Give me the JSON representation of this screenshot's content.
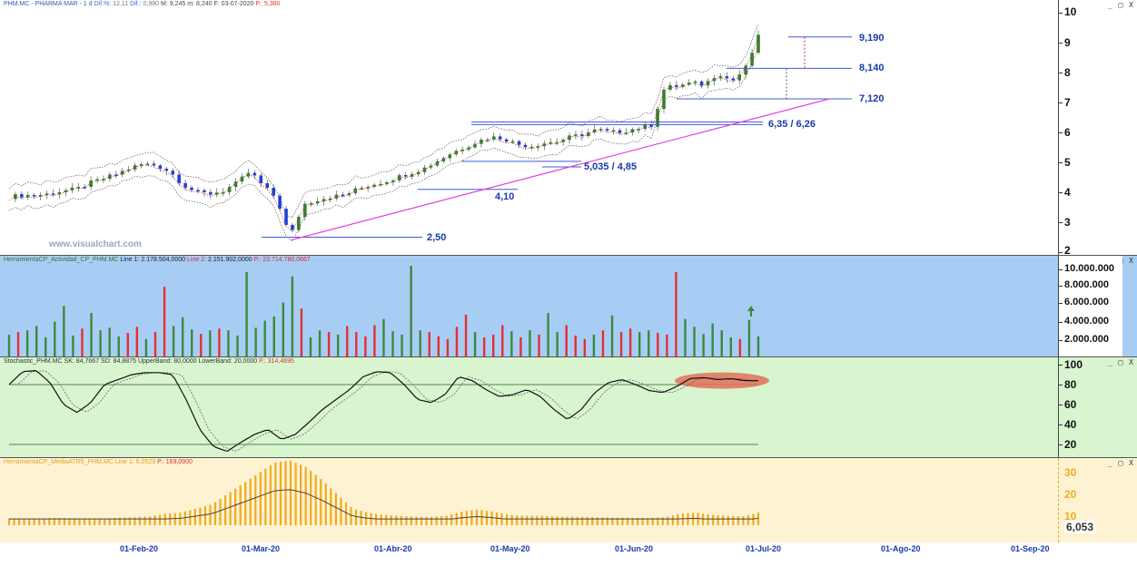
{
  "price_panel": {
    "header": {
      "symbol": "PHM.MC - PHARMA MAR - 1 d",
      "dif_pct_label": "Dif.%:",
      "dif_pct": "12,11",
      "dif_label": "Dif.:",
      "dif": "0,980",
      "max_label": "M:",
      "max": "9,245",
      "min_label": "m:",
      "min": "8,240",
      "date_label": "F:",
      "date": "03-07-2020",
      "price_label": "P.:",
      "price": "5,380"
    },
    "watermark": "www.visualchart.com",
    "levels": [
      "9,190",
      "8,140",
      "7,120",
      "6,35 / 6,26",
      "5,035 / 4,85",
      "4,10",
      "2,50"
    ],
    "y_ticks": [
      "10",
      "9",
      "8",
      "7",
      "6",
      "5",
      "4",
      "3",
      "2"
    ],
    "colors": {
      "bull": "#3b7d2e",
      "bear": "#1f3fd6",
      "trend": "#e23ce0",
      "level": "#3f5bd8",
      "bands": "#555555",
      "sma": "#d03030"
    }
  },
  "volume_panel": {
    "header": "HerramientaCP_Actividad_CP_PHM.MC",
    "line1_label": "Line 1:",
    "line1": "2.178.504,0000",
    "line2_label": "Line 2:",
    "line2": "2.151.902,0000",
    "p_label": "P.:",
    "p": "23.714.780,0667",
    "y_ticks": [
      "10.000.000",
      "8.000.000",
      "6.000.000",
      "4.000.000",
      "2.000.000"
    ],
    "colors": {
      "background": "#a8cdf5",
      "up": "#3b8a3b",
      "down": "#e33030"
    }
  },
  "stochastic_panel": {
    "header": "Stochastic_PHM.MC",
    "sk_label": "SK:",
    "sk": "84,7667",
    "sd_label": "SD:",
    "sd": "84,8875",
    "upper_label": "UpperBand:",
    "upper": "80,0000",
    "lower_label": "LowerBand:",
    "lower": "20,0000",
    "p_label": "P.:",
    "p": "314,4695",
    "y_ticks": [
      "100",
      "80",
      "60",
      "40",
      "20"
    ],
    "colors": {
      "background": "#d9f5d0",
      "highlight": "#e2705a"
    }
  },
  "atr_panel": {
    "header": "HerramientaCP_MediaATR5_PHM.MC",
    "line1_label": "Line 1:",
    "line1": "6,0529",
    "p_label": "P.:",
    "p": "169,0900",
    "y_ticks": [
      "30",
      "20",
      "10"
    ],
    "last_value": "6,053",
    "colors": {
      "background": "#fdf3d2",
      "bars": "#f2aa22"
    }
  },
  "window_buttons": "_ □ X",
  "x_axis": [
    "01-Feb-20",
    "01-Mar-20",
    "01-Abr-20",
    "01-May-20",
    "01-Jun-20",
    "01-Jul-20",
    "01-Ago-20",
    "01-Sep-20"
  ],
  "chart_data": {
    "type": "candlestick",
    "symbol": "PHM.MC",
    "price_range": [
      2,
      10
    ],
    "price_close_path": [
      3.85,
      3.9,
      3.9,
      3.95,
      4.05,
      4.1,
      4.3,
      4.45,
      4.6,
      4.8,
      4.95,
      4.9,
      4.7,
      4.25,
      4.0,
      3.95,
      4.05,
      4.3,
      4.7,
      4.2,
      3.8,
      2.5,
      3.6,
      3.75,
      3.85,
      3.9,
      4.1,
      4.25,
      4.35,
      4.5,
      4.65,
      4.8,
      5.05,
      5.3,
      5.5,
      5.7,
      5.85,
      5.8,
      5.6,
      5.55,
      5.65,
      5.7,
      5.85,
      5.95,
      6.1,
      6.0,
      6.05,
      6.15,
      6.25,
      7.5,
      7.55,
      7.65,
      7.6,
      8.0,
      7.7,
      8.1,
      9.19
    ],
    "levels": [
      9.19,
      8.14,
      7.12,
      6.35,
      6.26,
      5.035,
      4.85,
      4.1,
      2.5
    ],
    "volume_millions_path": [
      2.5,
      2.8,
      3.0,
      3.5,
      2.2,
      4.0,
      5.8,
      2.4,
      3.2,
      5.0,
      3.0,
      3.3,
      2.3,
      2.7,
      3.4,
      2.0,
      2.8,
      8.0,
      3.5,
      4.5,
      3.1,
      2.6,
      3.0,
      3.2,
      3.0,
      2.4,
      9.7,
      3.3,
      4.1,
      4.6,
      6.2,
      9.2,
      5.5,
      2.2,
      3.0,
      2.8,
      2.5,
      3.5,
      2.8,
      2.3,
      3.6,
      4.3,
      2.9,
      2.5,
      10.4,
      3.0,
      2.8,
      2.3,
      2.0,
      3.4,
      4.8,
      2.8,
      2.2,
      2.5,
      3.6,
      2.9,
      2.2,
      3.0,
      2.5,
      5.0,
      2.8,
      3.6,
      2.4,
      2.0,
      2.5,
      3.0,
      4.7,
      2.8,
      3.2,
      2.8,
      3.0,
      2.7,
      2.5,
      9.7,
      4.3,
      3.4,
      2.6,
      3.8,
      3.0,
      2.2,
      2.0,
      4.2,
      2.3
    ],
    "stochastic_sk_path": [
      80,
      93,
      94,
      82,
      60,
      52,
      62,
      80,
      85,
      90,
      92,
      92,
      90,
      65,
      35,
      18,
      13,
      22,
      30,
      35,
      25,
      30,
      42,
      55,
      65,
      75,
      88,
      93,
      92,
      80,
      65,
      62,
      70,
      88,
      84,
      75,
      68,
      70,
      75,
      68,
      55,
      45,
      55,
      72,
      82,
      85,
      80,
      74,
      72,
      78,
      86,
      87,
      85,
      86,
      84,
      84
    ],
    "stochastic_bands": [
      80,
      20
    ],
    "atr_path": [
      3.0,
      3.0,
      3.2,
      3.5,
      3.3,
      3.2,
      3.0,
      3.5,
      3.8,
      4.2,
      5.5,
      6.0,
      8.0,
      10.0,
      15.0,
      20.0,
      25.0,
      30.0,
      31.0,
      28.0,
      22.0,
      15.0,
      8.0,
      6.0,
      5.0,
      4.5,
      4.0,
      4.0,
      4.5,
      6.5,
      7.5,
      6.5,
      5.0,
      4.5,
      4.5,
      4.2,
      4.0,
      4.0,
      3.8,
      3.6,
      3.5,
      3.5,
      3.8,
      5.5,
      6.0,
      5.0,
      4.5,
      4.2,
      6.0
    ]
  }
}
